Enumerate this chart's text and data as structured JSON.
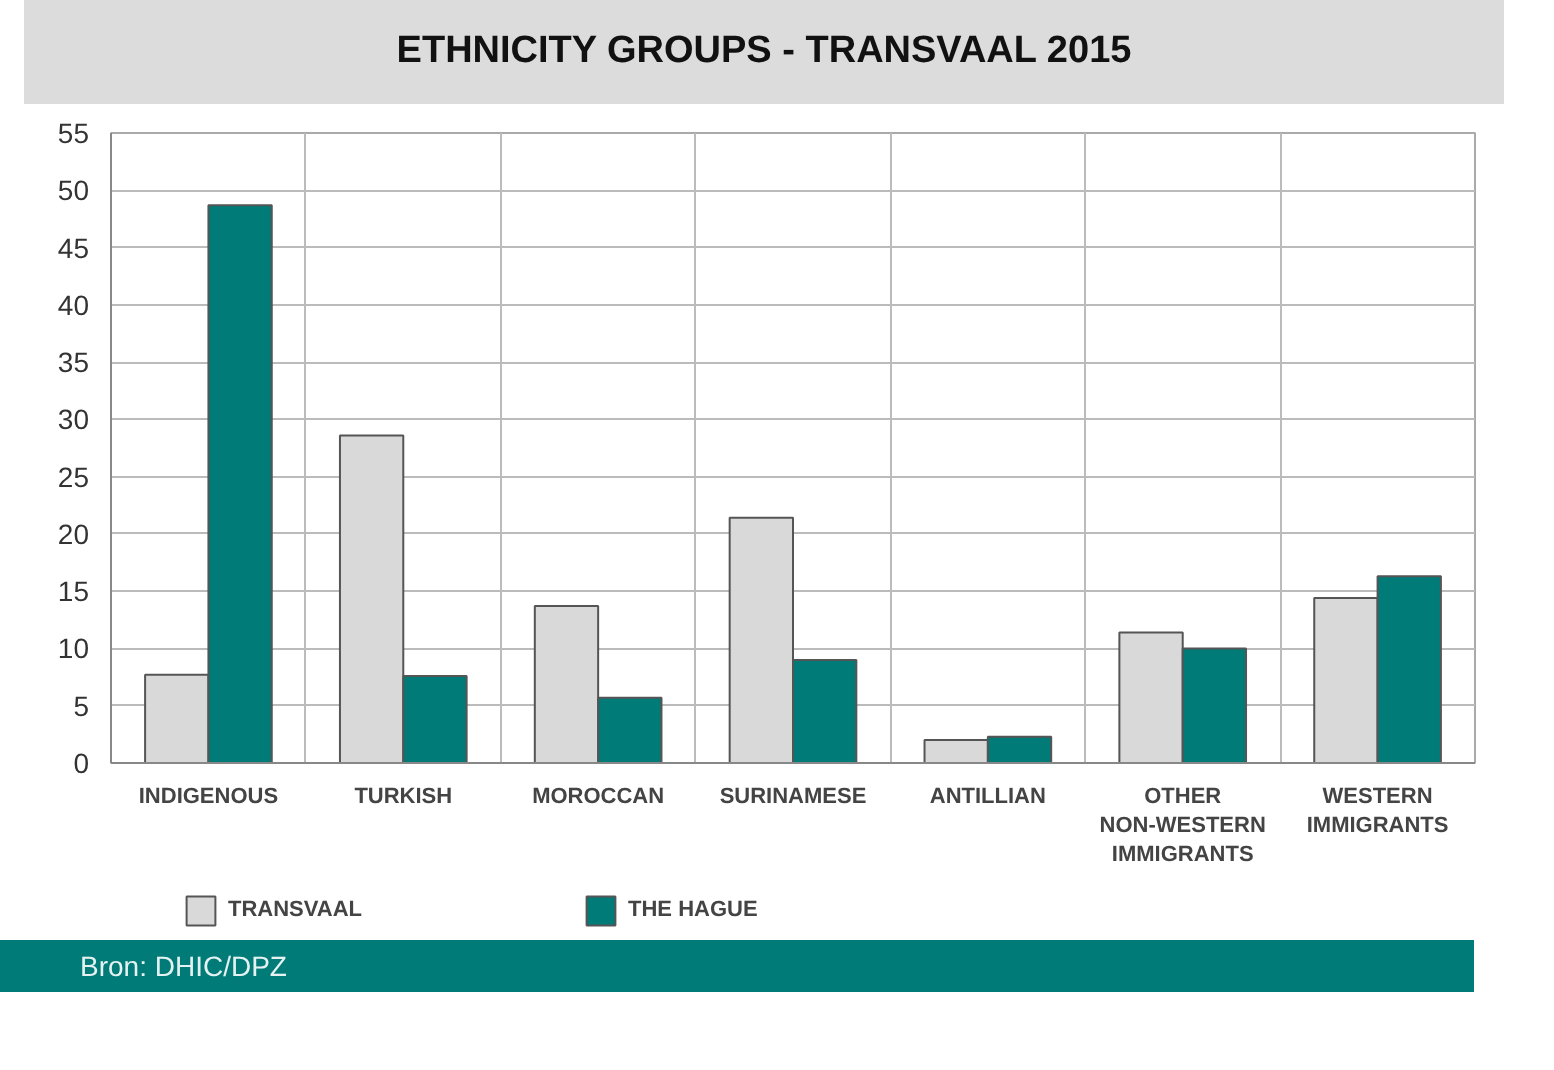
{
  "chart_data": {
    "type": "bar",
    "title": "ETHNICITY GROUPS - TRANSVAAL 2015",
    "categories": [
      "INDIGENOUS",
      "TURKISH",
      "MOROCCAN",
      "SURINAMESE",
      "ANTILLIAN",
      "OTHER\nNON-WESTERN\nIMMIGRANTS",
      "WESTERN\nIMMIGRANTS"
    ],
    "series": [
      {
        "name": "TRANSVAAL",
        "color": "#d9d9d9",
        "values": [
          7.7,
          28.6,
          13.7,
          21.4,
          2.0,
          11.4,
          14.4
        ]
      },
      {
        "name": "THE HAGUE",
        "color": "#007b78",
        "values": [
          48.7,
          7.6,
          5.7,
          9.0,
          2.3,
          10.0,
          16.3
        ]
      }
    ],
    "ylim": [
      0,
      55
    ],
    "yticks": [
      0,
      5,
      10,
      15,
      20,
      25,
      30,
      35,
      40,
      45,
      50,
      55
    ],
    "grid": true,
    "legend": "bottom",
    "annotations": [
      "Bron: DHIC/DPZ"
    ]
  }
}
